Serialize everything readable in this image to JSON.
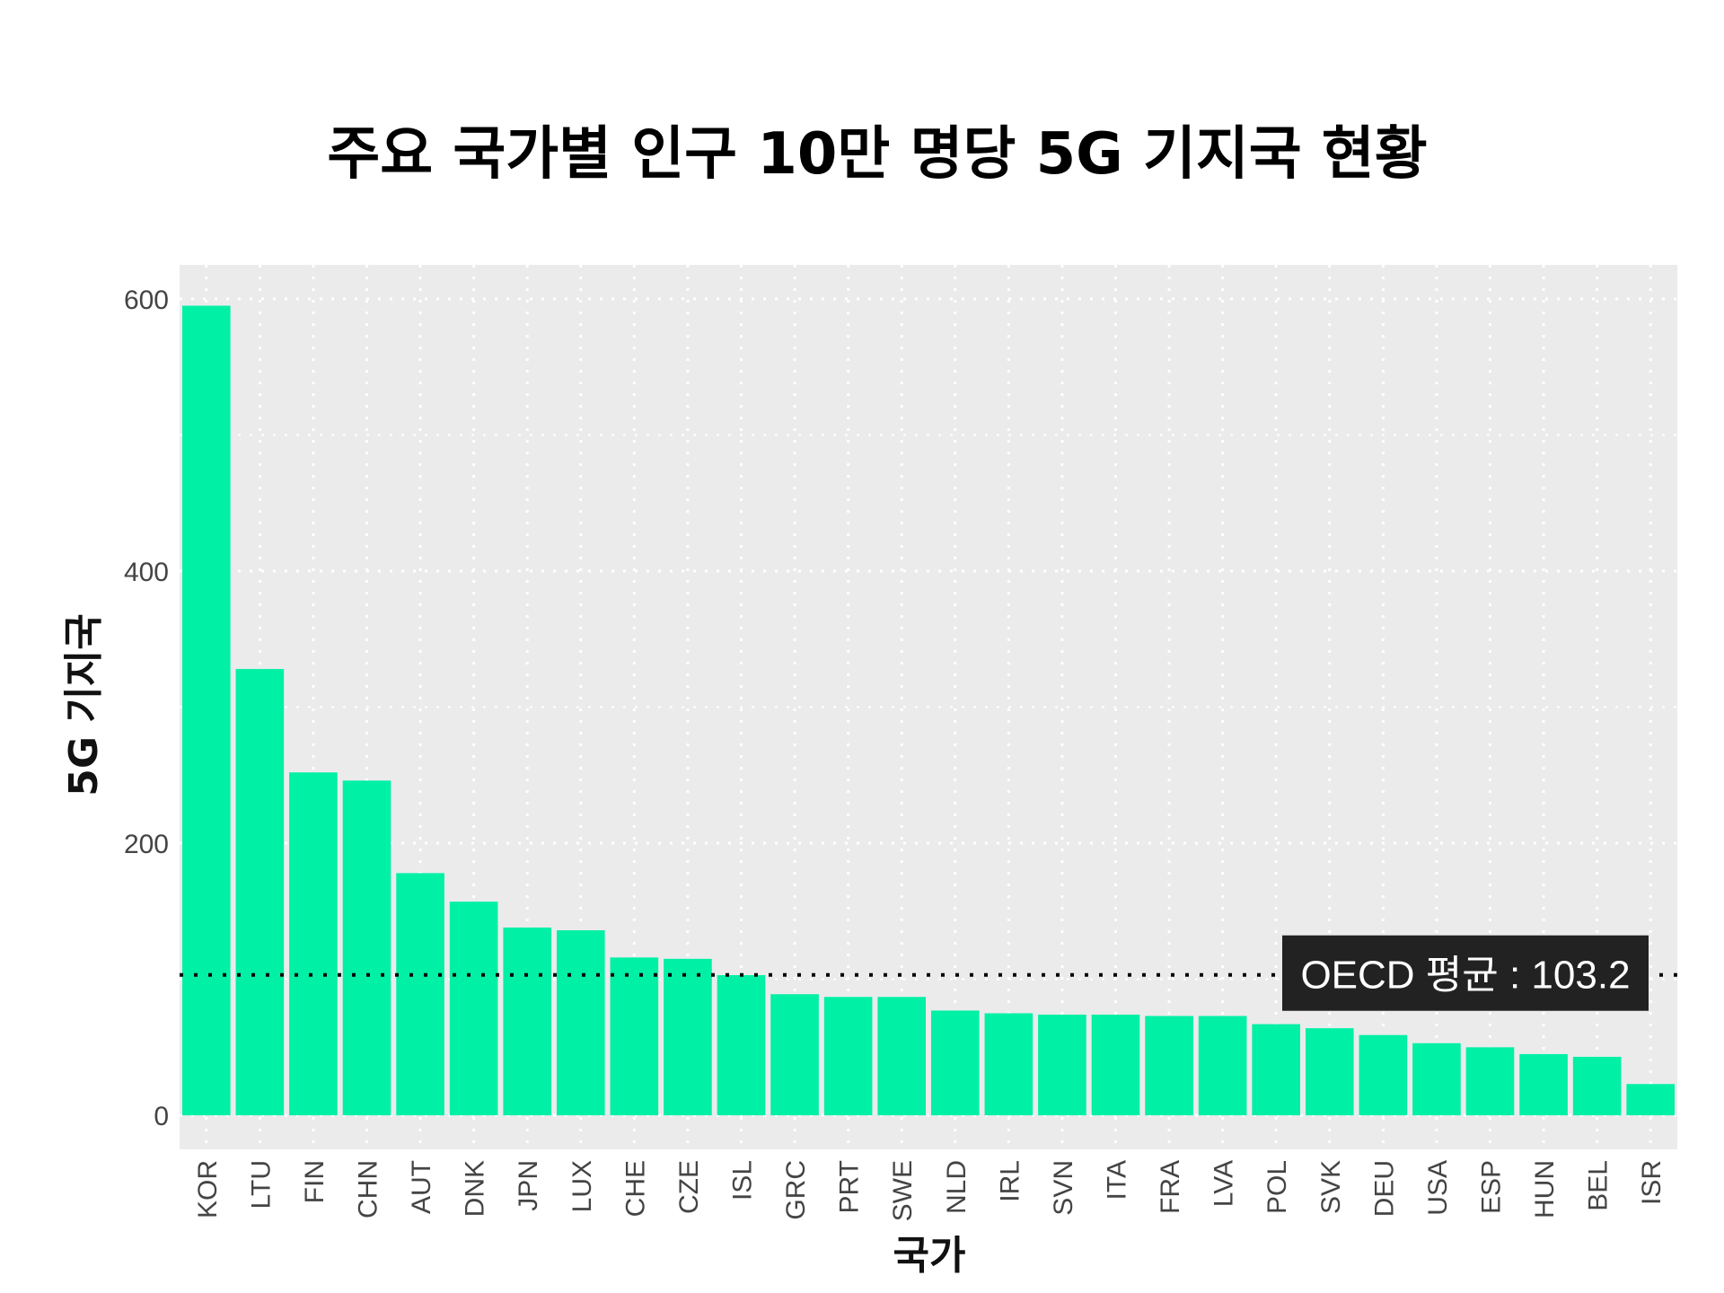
{
  "chart_data": {
    "type": "bar",
    "title": "주요 국가별 인구 10만 명당 5G 기지국 현황",
    "xlabel": "국가",
    "ylabel": "5G 기지국",
    "ylim": [
      -25,
      625
    ],
    "yticks": [
      0,
      200,
      400,
      600
    ],
    "grid": true,
    "categories": [
      "KOR",
      "LTU",
      "FIN",
      "CHN",
      "AUT",
      "DNK",
      "JPN",
      "LUX",
      "CHE",
      "CZE",
      "ISL",
      "GRC",
      "PRT",
      "SWE",
      "NLD",
      "IRL",
      "SVN",
      "ITA",
      "FRA",
      "LVA",
      "POL",
      "SVK",
      "DEU",
      "USA",
      "ESP",
      "HUN",
      "BEL",
      "ISR"
    ],
    "values": [
      595,
      328,
      252,
      246,
      178,
      157,
      138,
      136,
      116,
      115,
      103,
      89,
      87,
      87,
      77,
      75,
      74,
      74,
      73,
      73,
      67,
      64,
      59,
      53,
      50,
      45,
      43,
      23
    ],
    "reference_line": {
      "value": 103.2,
      "label": "OECD 평균 : 103.2"
    }
  },
  "colors": {
    "bar": "#00F0A6",
    "panel": "#EBEBEB",
    "grid": "#FFFFFF",
    "avg_line": "#000000",
    "avg_box": "#222222",
    "avg_text": "#FFFFFF"
  }
}
